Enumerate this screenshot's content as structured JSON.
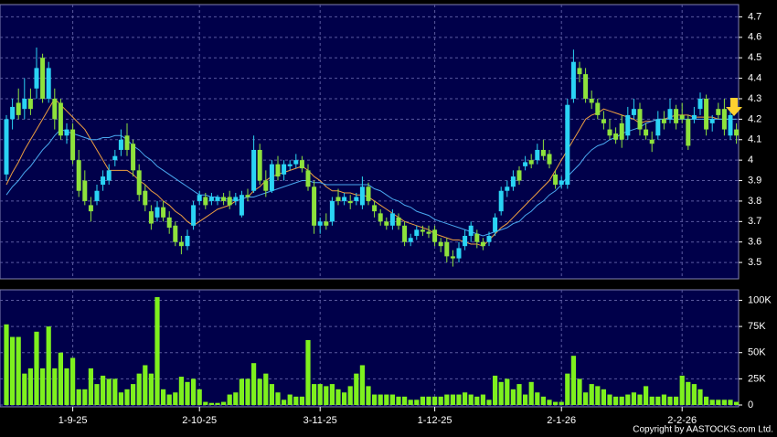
{
  "chart_data": [
    {
      "type": "candlestick",
      "up_color": "#2ad4f4",
      "down_color": "#8ee23c",
      "grid": true,
      "ylim": [
        3.42,
        4.76
      ],
      "yticks": [
        3.5,
        3.6,
        3.7,
        3.8,
        3.9,
        4,
        4.1,
        4.2,
        4.3,
        4.4,
        4.5,
        4.6,
        4.7
      ],
      "ohlc": [
        [
          3.93,
          4.22,
          3.9,
          4.2
        ],
        [
          4.2,
          4.3,
          4.15,
          4.26
        ],
        [
          4.28,
          4.35,
          4.2,
          4.22
        ],
        [
          4.25,
          4.4,
          4.2,
          4.3
        ],
        [
          4.3,
          4.35,
          4.22,
          4.25
        ],
        [
          4.35,
          4.55,
          4.3,
          4.45
        ],
        [
          4.5,
          4.52,
          4.28,
          4.3
        ],
        [
          4.3,
          4.48,
          4.28,
          4.45
        ],
        [
          4.3,
          4.35,
          4.15,
          4.2
        ],
        [
          4.28,
          4.3,
          4.1,
          4.12
        ],
        [
          4.12,
          4.18,
          4.08,
          4.15
        ],
        [
          4.15,
          4.18,
          3.98,
          4.0
        ],
        [
          4.0,
          4.05,
          3.82,
          3.85
        ],
        [
          3.9,
          3.95,
          3.78,
          3.8
        ],
        [
          3.78,
          3.82,
          3.7,
          3.75
        ],
        [
          3.8,
          3.88,
          3.78,
          3.85
        ],
        [
          3.88,
          3.95,
          3.85,
          3.92
        ],
        [
          3.9,
          3.98,
          3.88,
          3.95
        ],
        [
          4.0,
          4.05,
          3.97,
          4.02
        ],
        [
          4.05,
          4.15,
          4.02,
          4.1
        ],
        [
          4.12,
          4.18,
          4.02,
          4.05
        ],
        [
          4.08,
          4.1,
          3.92,
          3.95
        ],
        [
          3.95,
          3.98,
          3.8,
          3.83
        ],
        [
          3.85,
          3.88,
          3.75,
          3.78
        ],
        [
          3.75,
          3.78,
          3.66,
          3.69
        ],
        [
          3.72,
          3.8,
          3.7,
          3.77
        ],
        [
          3.77,
          3.8,
          3.7,
          3.72
        ],
        [
          3.72,
          3.75,
          3.64,
          3.67
        ],
        [
          3.68,
          3.7,
          3.58,
          3.6
        ],
        [
          3.6,
          3.63,
          3.54,
          3.58
        ],
        [
          3.58,
          3.66,
          3.56,
          3.63
        ],
        [
          3.68,
          3.8,
          3.66,
          3.78
        ],
        [
          3.8,
          3.85,
          3.78,
          3.83
        ],
        [
          3.82,
          3.84,
          3.76,
          3.78
        ],
        [
          3.8,
          3.84,
          3.78,
          3.82
        ],
        [
          3.8,
          3.83,
          3.78,
          3.82
        ],
        [
          3.82,
          3.84,
          3.78,
          3.8
        ],
        [
          3.82,
          3.85,
          3.76,
          3.78
        ],
        [
          3.8,
          3.84,
          3.78,
          3.82
        ],
        [
          3.73,
          3.85,
          3.72,
          3.83
        ],
        [
          3.83,
          3.86,
          3.8,
          3.82
        ],
        [
          3.85,
          4.12,
          3.84,
          4.05
        ],
        [
          4.05,
          4.08,
          3.88,
          3.9
        ],
        [
          3.9,
          3.95,
          3.82,
          3.85
        ],
        [
          3.85,
          4.0,
          3.84,
          3.98
        ],
        [
          3.98,
          4.02,
          3.9,
          3.92
        ],
        [
          3.93,
          4.0,
          3.9,
          3.98
        ],
        [
          3.97,
          4.0,
          3.95,
          3.98
        ],
        [
          3.98,
          4.03,
          3.96,
          4.0
        ],
        [
          4.0,
          4.02,
          3.94,
          3.96
        ],
        [
          3.95,
          3.98,
          3.85,
          3.87
        ],
        [
          3.87,
          3.9,
          3.64,
          3.68
        ],
        [
          3.68,
          3.72,
          3.64,
          3.7
        ],
        [
          3.7,
          3.74,
          3.66,
          3.68
        ],
        [
          3.7,
          3.82,
          3.68,
          3.8
        ],
        [
          3.82,
          3.86,
          3.78,
          3.8
        ],
        [
          3.8,
          3.84,
          3.78,
          3.82
        ],
        [
          3.8,
          3.83,
          3.76,
          3.79
        ],
        [
          3.8,
          3.84,
          3.78,
          3.82
        ],
        [
          3.78,
          3.92,
          3.76,
          3.87
        ],
        [
          3.87,
          3.89,
          3.78,
          3.8
        ],
        [
          3.78,
          3.8,
          3.72,
          3.75
        ],
        [
          3.74,
          3.76,
          3.68,
          3.7
        ],
        [
          3.7,
          3.72,
          3.66,
          3.68
        ],
        [
          3.68,
          3.76,
          3.66,
          3.74
        ],
        [
          3.72,
          3.74,
          3.66,
          3.68
        ],
        [
          3.68,
          3.7,
          3.58,
          3.6
        ],
        [
          3.6,
          3.64,
          3.58,
          3.62
        ],
        [
          3.63,
          3.68,
          3.61,
          3.66
        ],
        [
          3.66,
          3.68,
          3.63,
          3.65
        ],
        [
          3.65,
          3.68,
          3.62,
          3.64
        ],
        [
          3.66,
          3.68,
          3.58,
          3.6
        ],
        [
          3.6,
          3.62,
          3.55,
          3.58
        ],
        [
          3.6,
          3.62,
          3.5,
          3.53
        ],
        [
          3.53,
          3.56,
          3.48,
          3.52
        ],
        [
          3.52,
          3.6,
          3.5,
          3.57
        ],
        [
          3.58,
          3.66,
          3.56,
          3.63
        ],
        [
          3.63,
          3.7,
          3.6,
          3.68
        ],
        [
          3.64,
          3.66,
          3.57,
          3.6
        ],
        [
          3.6,
          3.62,
          3.56,
          3.58
        ],
        [
          3.6,
          3.65,
          3.58,
          3.63
        ],
        [
          3.65,
          3.74,
          3.63,
          3.72
        ],
        [
          3.75,
          3.87,
          3.73,
          3.85
        ],
        [
          3.85,
          3.9,
          3.82,
          3.87
        ],
        [
          3.87,
          3.95,
          3.85,
          3.92
        ],
        [
          3.95,
          3.97,
          3.88,
          3.9
        ],
        [
          3.97,
          4.02,
          3.95,
          3.99
        ],
        [
          4.0,
          4.03,
          3.96,
          3.98
        ],
        [
          4.0,
          4.08,
          3.98,
          4.05
        ],
        [
          4.05,
          4.1,
          4.0,
          4.02
        ],
        [
          4.03,
          4.05,
          3.96,
          3.98
        ],
        [
          3.93,
          3.95,
          3.86,
          3.88
        ],
        [
          3.88,
          3.92,
          3.86,
          3.9
        ],
        [
          3.88,
          4.3,
          3.86,
          4.27
        ],
        [
          4.3,
          4.54,
          4.28,
          4.48
        ],
        [
          4.45,
          4.48,
          4.38,
          4.42
        ],
        [
          4.42,
          4.45,
          4.28,
          4.3
        ],
        [
          4.3,
          4.34,
          4.25,
          4.28
        ],
        [
          4.28,
          4.3,
          4.2,
          4.22
        ],
        [
          4.2,
          4.24,
          4.15,
          4.18
        ],
        [
          4.15,
          4.2,
          4.1,
          4.12
        ],
        [
          4.13,
          4.16,
          4.08,
          4.1
        ],
        [
          4.18,
          4.22,
          4.06,
          4.1
        ],
        [
          4.12,
          4.26,
          4.1,
          4.22
        ],
        [
          4.22,
          4.3,
          4.2,
          4.25
        ],
        [
          4.25,
          4.28,
          4.12,
          4.15
        ],
        [
          4.15,
          4.18,
          4.1,
          4.12
        ],
        [
          4.1,
          4.14,
          4.04,
          4.08
        ],
        [
          4.12,
          4.24,
          4.1,
          4.2
        ],
        [
          4.2,
          4.24,
          4.15,
          4.18
        ],
        [
          4.2,
          4.3,
          4.18,
          4.25
        ],
        [
          4.25,
          4.27,
          4.15,
          4.18
        ],
        [
          4.22,
          4.28,
          4.18,
          4.2
        ],
        [
          4.2,
          4.22,
          4.05,
          4.07
        ],
        [
          4.2,
          4.26,
          4.18,
          4.22
        ],
        [
          4.25,
          4.33,
          4.22,
          4.3
        ],
        [
          4.3,
          4.32,
          4.12,
          4.15
        ],
        [
          4.18,
          4.22,
          4.14,
          4.2
        ],
        [
          4.25,
          4.28,
          4.2,
          4.22
        ],
        [
          4.25,
          4.3,
          4.12,
          4.15
        ],
        [
          4.12,
          4.24,
          4.1,
          4.22
        ],
        [
          4.15,
          4.18,
          4.08,
          4.12
        ]
      ],
      "series": [
        {
          "color": "#f0a040",
          "values": [
            3.88,
            3.94,
            3.99,
            4.05,
            4.1,
            4.15,
            4.2,
            4.25,
            4.3,
            4.27,
            4.24,
            4.21,
            4.18,
            4.15,
            4.1,
            4.05,
            4.0,
            3.95,
            3.95,
            3.95,
            3.95,
            3.93,
            3.9,
            3.88,
            3.85,
            3.83,
            3.8,
            3.78,
            3.75,
            3.73,
            3.7,
            3.68,
            3.7,
            3.72,
            3.74,
            3.76,
            3.77,
            3.78,
            3.8,
            3.81,
            3.82,
            3.85,
            3.87,
            3.9,
            3.92,
            3.93,
            3.94,
            3.95,
            3.96,
            3.97,
            3.95,
            3.92,
            3.9,
            3.87,
            3.85,
            3.85,
            3.84,
            3.84,
            3.83,
            3.83,
            3.82,
            3.8,
            3.78,
            3.76,
            3.74,
            3.72,
            3.7,
            3.69,
            3.68,
            3.67,
            3.66,
            3.64,
            3.63,
            3.62,
            3.61,
            3.61,
            3.6,
            3.59,
            3.59,
            3.58,
            3.61,
            3.64,
            3.67,
            3.69,
            3.72,
            3.75,
            3.78,
            3.81,
            3.84,
            3.87,
            3.9,
            3.95,
            4.0,
            4.05,
            4.1,
            4.15,
            4.2,
            4.22,
            4.23,
            4.25,
            4.24,
            4.23,
            4.22,
            4.21,
            4.2,
            4.18,
            4.19,
            4.19,
            4.2,
            4.2,
            4.21,
            4.22,
            4.22,
            4.22,
            4.21,
            4.21,
            4.21,
            4.21,
            4.2,
            4.2,
            4.2,
            4.2
          ]
        },
        {
          "color": "#4aa8f0",
          "values": [
            3.83,
            3.87,
            3.9,
            3.94,
            3.97,
            4.01,
            4.05,
            4.08,
            4.12,
            4.15,
            4.14,
            4.13,
            4.12,
            4.11,
            4.1,
            4.1,
            4.11,
            4.11,
            4.12,
            4.12,
            4.1,
            4.07,
            4.05,
            4.02,
            4.0,
            3.97,
            3.95,
            3.93,
            3.91,
            3.89,
            3.87,
            3.85,
            3.83,
            3.83,
            3.82,
            3.82,
            3.81,
            3.81,
            3.8,
            3.81,
            3.82,
            3.82,
            3.83,
            3.84,
            3.85,
            3.86,
            3.87,
            3.88,
            3.89,
            3.9,
            3.9,
            3.89,
            3.89,
            3.88,
            3.88,
            3.88,
            3.88,
            3.88,
            3.88,
            3.88,
            3.88,
            3.86,
            3.85,
            3.83,
            3.81,
            3.8,
            3.78,
            3.77,
            3.75,
            3.74,
            3.73,
            3.71,
            3.7,
            3.69,
            3.68,
            3.67,
            3.66,
            3.65,
            3.64,
            3.63,
            3.64,
            3.65,
            3.66,
            3.67,
            3.69,
            3.7,
            3.73,
            3.75,
            3.78,
            3.8,
            3.83,
            3.85,
            3.88,
            3.92,
            3.95,
            3.98,
            4.02,
            4.05,
            4.07,
            4.08,
            4.1,
            4.11,
            4.13,
            4.14,
            4.15,
            4.16,
            4.18,
            4.19,
            4.2,
            4.2,
            4.2,
            4.2,
            4.2,
            4.2,
            4.2,
            4.2,
            4.2,
            4.2,
            4.2,
            4.2,
            4.2,
            4.2
          ]
        }
      ]
    },
    {
      "type": "bar",
      "color": "#7ef01e",
      "grid": true,
      "ylim": [
        0,
        110000
      ],
      "yticks": [
        0,
        {
          "value": 25000,
          "label": "25K"
        },
        {
          "value": 50000,
          "label": "50K"
        },
        {
          "value": 75000,
          "label": "75K"
        },
        {
          "value": 100000,
          "label": "100K"
        }
      ],
      "categories": [
        null,
        null,
        null,
        null,
        null,
        null,
        null,
        null,
        null,
        null,
        null,
        "1-9-25",
        null,
        null,
        null,
        null,
        null,
        null,
        null,
        null,
        null,
        null,
        null,
        null,
        null,
        null,
        null,
        null,
        null,
        null,
        null,
        null,
        "2-10-25",
        null,
        null,
        null,
        null,
        null,
        null,
        null,
        null,
        null,
        null,
        null,
        null,
        null,
        null,
        null,
        null,
        null,
        null,
        null,
        "3-11-25",
        null,
        null,
        null,
        null,
        null,
        null,
        null,
        null,
        null,
        null,
        null,
        null,
        null,
        null,
        null,
        null,
        null,
        null,
        "1-12-25",
        null,
        null,
        null,
        null,
        null,
        null,
        null,
        null,
        null,
        null,
        null,
        null,
        null,
        null,
        null,
        null,
        null,
        null,
        null,
        null,
        "2-1-26",
        null,
        null,
        null,
        null,
        null,
        null,
        null,
        null,
        null,
        null,
        null,
        null,
        null,
        null,
        null,
        null,
        null,
        null,
        null,
        "2-2-26",
        null,
        null,
        null,
        null,
        null,
        null,
        null,
        null,
        null
      ],
      "values": [
        77000,
        65000,
        65000,
        30000,
        35000,
        70000,
        35000,
        75000,
        35000,
        50000,
        35000,
        45000,
        15000,
        15000,
        35000,
        20000,
        28000,
        25000,
        25000,
        12000,
        15000,
        20000,
        30000,
        38000,
        30000,
        103000,
        15000,
        10000,
        12000,
        27000,
        22000,
        25000,
        15000,
        3000,
        2000,
        2000,
        3000,
        10000,
        12000,
        25000,
        25000,
        40000,
        25000,
        30000,
        20000,
        12000,
        5000,
        10000,
        8000,
        8000,
        62000,
        20000,
        20000,
        18000,
        20000,
        15000,
        12000,
        18000,
        30000,
        38000,
        18000,
        10000,
        10000,
        10000,
        10000,
        8000,
        8000,
        5000,
        5000,
        8000,
        8000,
        8000,
        8000,
        10000,
        10000,
        10000,
        12000,
        10000,
        8000,
        10000,
        5000,
        28000,
        22000,
        25000,
        15000,
        20000,
        10000,
        22000,
        12000,
        8000,
        5000,
        3000,
        3000,
        30000,
        47000,
        25000,
        12000,
        20000,
        18000,
        15000,
        10000,
        8000,
        8000,
        10000,
        12000,
        10000,
        18000,
        8000,
        8000,
        10000,
        8000,
        8000,
        28000,
        22000,
        20000,
        15000,
        8000,
        5000,
        5000,
        5000,
        5000,
        3000
      ]
    }
  ],
  "copyright": "Copyright by AASTOCKS.com Ltd."
}
